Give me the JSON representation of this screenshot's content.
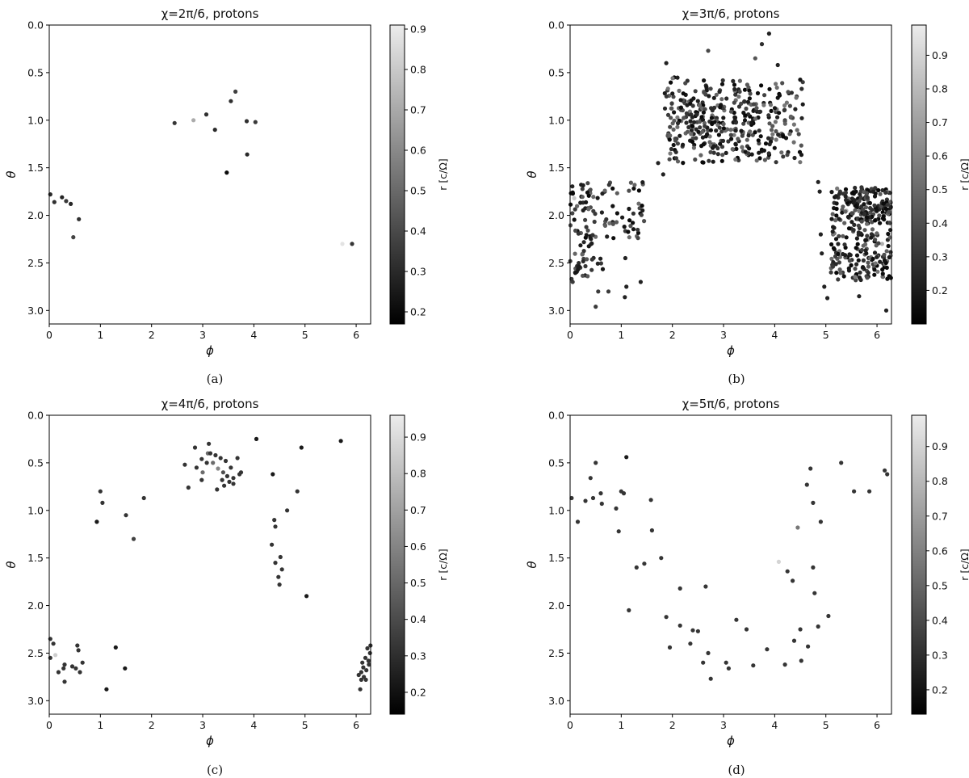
{
  "chart_data": [
    {
      "type": "scatter",
      "panel": "(a)",
      "title": "χ=2π/6, protons",
      "xlabel": "ϕ",
      "ylabel": "θ",
      "colorbar_label": "r [c/Ω]",
      "xlim": [
        0,
        6.283
      ],
      "ylim": [
        3.14159,
        0
      ],
      "xticks": [
        "0",
        "1",
        "2",
        "3",
        "4",
        "5",
        "6"
      ],
      "yticks": [
        "0.0",
        "0.5",
        "1.0",
        "1.5",
        "2.0",
        "2.5",
        "3.0"
      ],
      "clim": [
        0.17,
        0.91
      ],
      "cticks": [
        "0.2",
        "0.3",
        "0.4",
        "0.5",
        "0.6",
        "0.7",
        "0.8",
        "0.9"
      ],
      "points": [
        [
          0.02,
          1.78,
          0.28
        ],
        [
          0.1,
          1.86,
          0.3
        ],
        [
          0.25,
          1.81,
          0.26
        ],
        [
          0.33,
          1.85,
          0.33
        ],
        [
          0.42,
          1.88,
          0.27
        ],
        [
          0.58,
          2.04,
          0.3
        ],
        [
          0.47,
          2.23,
          0.36
        ],
        [
          2.45,
          1.03,
          0.32
        ],
        [
          2.82,
          1.0,
          0.7
        ],
        [
          3.07,
          0.94,
          0.3
        ],
        [
          3.24,
          1.1,
          0.28
        ],
        [
          3.47,
          1.55,
          0.18
        ],
        [
          3.55,
          0.8,
          0.3
        ],
        [
          3.64,
          0.7,
          0.35
        ],
        [
          3.86,
          1.01,
          0.3
        ],
        [
          4.03,
          1.02,
          0.33
        ],
        [
          3.87,
          1.36,
          0.28
        ],
        [
          5.73,
          2.3,
          0.88
        ],
        [
          5.92,
          2.3,
          0.32
        ]
      ]
    },
    {
      "type": "scatter",
      "panel": "(b)",
      "title": "χ=3π/6, protons",
      "xlabel": "ϕ",
      "ylabel": "θ",
      "colorbar_label": "r [c/Ω]",
      "xlim": [
        0,
        6.283
      ],
      "ylim": [
        3.14159,
        0
      ],
      "xticks": [
        "0",
        "1",
        "2",
        "3",
        "4",
        "5",
        "6"
      ],
      "yticks": [
        "0.0",
        "0.5",
        "1.0",
        "1.5",
        "2.0",
        "2.5",
        "3.0"
      ],
      "clim": [
        0.1,
        0.99
      ],
      "cticks": [
        "0.2",
        "0.3",
        "0.4",
        "0.5",
        "0.6",
        "0.7",
        "0.8",
        "0.9"
      ],
      "points": [
        [
          1.72,
          1.45,
          0.2
        ],
        [
          1.82,
          1.57,
          0.2
        ],
        [
          1.88,
          0.4,
          0.2
        ],
        [
          2.7,
          0.27,
          0.35
        ],
        [
          3.62,
          0.35,
          0.4
        ],
        [
          3.75,
          0.2,
          0.25
        ],
        [
          3.89,
          0.09,
          0.2
        ],
        [
          4.06,
          0.42,
          0.2
        ],
        [
          4.55,
          0.6,
          0.3
        ],
        [
          4.43,
          0.75,
          0.3
        ],
        [
          4.3,
          0.85,
          0.35
        ],
        [
          4.2,
          1.0,
          0.3
        ],
        [
          3.62,
          1.12,
          0.75
        ],
        [
          1.08,
          2.45,
          0.2
        ],
        [
          1.1,
          2.75,
          0.2
        ],
        [
          1.07,
          2.86,
          0.2
        ],
        [
          1.38,
          2.7,
          0.2
        ],
        [
          0.5,
          2.96,
          0.3
        ],
        [
          0.55,
          2.8,
          0.3
        ],
        [
          0.75,
          2.8,
          0.3
        ],
        [
          0.05,
          2.7,
          0.3
        ],
        [
          0.1,
          2.6,
          0.35
        ],
        [
          0.2,
          2.55,
          0.3
        ],
        [
          0.08,
          1.82,
          0.85
        ],
        [
          4.85,
          1.65,
          0.2
        ],
        [
          4.88,
          1.75,
          0.2
        ],
        [
          4.9,
          2.2,
          0.2
        ],
        [
          4.92,
          2.4,
          0.2
        ],
        [
          4.97,
          2.75,
          0.2
        ],
        [
          5.03,
          2.87,
          0.2
        ],
        [
          5.1,
          2.6,
          0.3
        ],
        [
          5.65,
          2.85,
          0.2
        ],
        [
          6.18,
          3.0,
          0.2
        ],
        [
          5.4,
          1.95,
          0.8
        ],
        [
          6.1,
          2.3,
          0.75
        ]
      ],
      "clusters": [
        {
          "x": [
            1.85,
            4.55
          ],
          "y": [
            0.55,
            1.45
          ],
          "n": 310,
          "c": [
            0.1,
            0.55
          ],
          "seed": 11
        },
        {
          "x": [
            2.1,
            3.7
          ],
          "y": [
            0.7,
            1.3
          ],
          "n": 90,
          "c": [
            0.1,
            0.5
          ],
          "seed": 12
        },
        {
          "x": [
            0.0,
            1.45
          ],
          "y": [
            1.65,
            2.25
          ],
          "n": 95,
          "c": [
            0.1,
            0.5
          ],
          "seed": 13
        },
        {
          "x": [
            0.0,
            0.7
          ],
          "y": [
            2.2,
            2.75
          ],
          "n": 35,
          "c": [
            0.15,
            0.5
          ],
          "seed": 14
        },
        {
          "x": [
            5.1,
            6.28
          ],
          "y": [
            1.7,
            2.7
          ],
          "n": 260,
          "c": [
            0.1,
            0.55
          ],
          "seed": 15
        },
        {
          "x": [
            5.5,
            6.28
          ],
          "y": [
            1.7,
            2.1
          ],
          "n": 70,
          "c": [
            0.1,
            0.5
          ],
          "seed": 16
        }
      ]
    },
    {
      "type": "scatter",
      "panel": "(c)",
      "title": "χ=4π/6, protons",
      "xlabel": "ϕ",
      "ylabel": "θ",
      "colorbar_label": "r [c/Ω]",
      "xlim": [
        0,
        6.283
      ],
      "ylim": [
        3.14159,
        0
      ],
      "xticks": [
        "0",
        "1",
        "2",
        "3",
        "4",
        "5",
        "6"
      ],
      "yticks": [
        "0.0",
        "0.5",
        "1.0",
        "1.5",
        "2.0",
        "2.5",
        "3.0"
      ],
      "clim": [
        0.14,
        0.96
      ],
      "cticks": [
        "0.2",
        "0.3",
        "0.4",
        "0.5",
        "0.6",
        "0.7",
        "0.8",
        "0.9"
      ],
      "points": [
        [
          0.02,
          2.35,
          0.3
        ],
        [
          0.08,
          2.4,
          0.3
        ],
        [
          0.02,
          2.55,
          0.3
        ],
        [
          0.12,
          2.52,
          0.85
        ],
        [
          0.18,
          2.7,
          0.3
        ],
        [
          0.28,
          2.66,
          0.3
        ],
        [
          0.3,
          2.8,
          0.3
        ],
        [
          0.3,
          2.62,
          0.3
        ],
        [
          0.45,
          2.64,
          0.3
        ],
        [
          0.52,
          2.66,
          0.3
        ],
        [
          0.55,
          2.42,
          0.3
        ],
        [
          0.57,
          2.47,
          0.3
        ],
        [
          0.6,
          2.7,
          0.3
        ],
        [
          0.65,
          2.6,
          0.3
        ],
        [
          0.93,
          1.12,
          0.2
        ],
        [
          1.0,
          0.8,
          0.3
        ],
        [
          1.04,
          0.92,
          0.3
        ],
        [
          1.12,
          2.88,
          0.2
        ],
        [
          1.3,
          2.44,
          0.2
        ],
        [
          1.48,
          2.66,
          0.2
        ],
        [
          1.5,
          1.05,
          0.3
        ],
        [
          1.65,
          1.3,
          0.35
        ],
        [
          1.85,
          0.87,
          0.3
        ],
        [
          2.65,
          0.52,
          0.3
        ],
        [
          2.72,
          0.76,
          0.3
        ],
        [
          2.85,
          0.34,
          0.3
        ],
        [
          2.88,
          0.55,
          0.3
        ],
        [
          2.98,
          0.68,
          0.3
        ],
        [
          3.0,
          0.6,
          0.5
        ],
        [
          3.1,
          0.4,
          0.5
        ],
        [
          3.12,
          0.3,
          0.3
        ],
        [
          3.2,
          0.5,
          0.5
        ],
        [
          3.3,
          0.56,
          0.6
        ],
        [
          3.28,
          0.78,
          0.3
        ],
        [
          3.4,
          0.6,
          0.4
        ],
        [
          3.45,
          0.48,
          0.3
        ],
        [
          3.52,
          0.7,
          0.3
        ],
        [
          3.55,
          0.55,
          0.3
        ],
        [
          3.6,
          0.66,
          0.3
        ],
        [
          3.68,
          0.45,
          0.3
        ],
        [
          3.72,
          0.62,
          0.3
        ],
        [
          3.75,
          0.6,
          0.3
        ],
        [
          3.15,
          0.4,
          0.3
        ],
        [
          3.35,
          0.45,
          0.3
        ],
        [
          3.42,
          0.74,
          0.3
        ],
        [
          3.6,
          0.72,
          0.3
        ],
        [
          3.48,
          0.64,
          0.3
        ],
        [
          3.08,
          0.5,
          0.3
        ],
        [
          2.98,
          0.46,
          0.3
        ],
        [
          3.25,
          0.42,
          0.3
        ],
        [
          3.38,
          0.68,
          0.3
        ],
        [
          4.05,
          0.25,
          0.2
        ],
        [
          4.37,
          0.62,
          0.2
        ],
        [
          4.4,
          1.1,
          0.3
        ],
        [
          4.42,
          1.17,
          0.3
        ],
        [
          4.35,
          1.36,
          0.3
        ],
        [
          4.42,
          1.55,
          0.3
        ],
        [
          4.5,
          1.78,
          0.3
        ],
        [
          4.48,
          1.7,
          0.3
        ],
        [
          4.52,
          1.49,
          0.3
        ],
        [
          4.55,
          1.62,
          0.3
        ],
        [
          4.65,
          1.0,
          0.3
        ],
        [
          4.85,
          0.8,
          0.3
        ],
        [
          4.93,
          0.34,
          0.2
        ],
        [
          5.03,
          1.9,
          0.2
        ],
        [
          5.7,
          0.27,
          0.2
        ],
        [
          6.05,
          2.73,
          0.3
        ],
        [
          6.08,
          2.88,
          0.3
        ],
        [
          6.1,
          2.7,
          0.3
        ],
        [
          6.12,
          2.6,
          0.3
        ],
        [
          6.15,
          2.75,
          0.3
        ],
        [
          6.18,
          2.55,
          0.3
        ],
        [
          6.2,
          2.68,
          0.3
        ],
        [
          6.22,
          2.45,
          0.3
        ],
        [
          6.25,
          2.62,
          0.3
        ],
        [
          6.27,
          2.5,
          0.3
        ],
        [
          6.28,
          2.42,
          0.3
        ],
        [
          6.14,
          2.65,
          0.3
        ],
        [
          6.19,
          2.78,
          0.3
        ],
        [
          6.24,
          2.58,
          0.3
        ],
        [
          6.1,
          2.78,
          0.3
        ]
      ]
    },
    {
      "type": "scatter",
      "panel": "(d)",
      "title": "χ=5π/6, protons",
      "xlabel": "ϕ",
      "ylabel": "θ",
      "colorbar_label": "r [c/Ω]",
      "xlim": [
        0,
        6.283
      ],
      "ylim": [
        3.14159,
        0
      ],
      "xticks": [
        "0",
        "1",
        "2",
        "3",
        "4",
        "5",
        "6"
      ],
      "yticks": [
        "0.0",
        "0.5",
        "1.0",
        "1.5",
        "2.0",
        "2.5",
        "3.0"
      ],
      "clim": [
        0.13,
        0.99
      ],
      "cticks": [
        "0.2",
        "0.3",
        "0.4",
        "0.5",
        "0.6",
        "0.7",
        "0.8",
        "0.9"
      ],
      "points": [
        [
          0.03,
          0.87,
          0.3
        ],
        [
          0.15,
          1.12,
          0.3
        ],
        [
          0.3,
          0.9,
          0.3
        ],
        [
          0.4,
          0.66,
          0.3
        ],
        [
          0.45,
          0.87,
          0.3
        ],
        [
          0.5,
          0.5,
          0.3
        ],
        [
          0.6,
          0.82,
          0.3
        ],
        [
          0.62,
          0.93,
          0.3
        ],
        [
          0.9,
          0.98,
          0.3
        ],
        [
          0.95,
          1.22,
          0.3
        ],
        [
          1.0,
          0.8,
          0.3
        ],
        [
          1.05,
          0.82,
          0.3
        ],
        [
          1.1,
          0.44,
          0.2
        ],
        [
          1.15,
          2.05,
          0.3
        ],
        [
          1.3,
          1.6,
          0.3
        ],
        [
          1.45,
          1.56,
          0.3
        ],
        [
          1.58,
          0.89,
          0.3
        ],
        [
          1.6,
          1.21,
          0.3
        ],
        [
          1.78,
          1.5,
          0.3
        ],
        [
          1.88,
          2.12,
          0.3
        ],
        [
          1.95,
          2.44,
          0.3
        ],
        [
          2.15,
          1.82,
          0.3
        ],
        [
          2.15,
          2.21,
          0.3
        ],
        [
          2.35,
          2.4,
          0.3
        ],
        [
          2.4,
          2.26,
          0.3
        ],
        [
          2.5,
          2.27,
          0.3
        ],
        [
          2.6,
          2.6,
          0.3
        ],
        [
          2.65,
          1.8,
          0.3
        ],
        [
          2.7,
          2.5,
          0.3
        ],
        [
          2.75,
          2.77,
          0.3
        ],
        [
          3.05,
          2.6,
          0.3
        ],
        [
          3.1,
          2.66,
          0.3
        ],
        [
          3.25,
          2.15,
          0.3
        ],
        [
          3.45,
          2.25,
          0.3
        ],
        [
          3.58,
          2.63,
          0.3
        ],
        [
          3.85,
          2.46,
          0.3
        ],
        [
          4.08,
          1.54,
          0.9
        ],
        [
          4.2,
          2.62,
          0.3
        ],
        [
          4.25,
          1.64,
          0.3
        ],
        [
          4.35,
          1.74,
          0.3
        ],
        [
          4.38,
          2.37,
          0.3
        ],
        [
          4.45,
          1.18,
          0.55
        ],
        [
          4.5,
          2.25,
          0.3
        ],
        [
          4.52,
          2.58,
          0.3
        ],
        [
          4.63,
          0.73,
          0.3
        ],
        [
          4.65,
          2.43,
          0.3
        ],
        [
          4.7,
          0.56,
          0.3
        ],
        [
          4.75,
          1.6,
          0.3
        ],
        [
          4.75,
          0.92,
          0.3
        ],
        [
          4.78,
          1.87,
          0.3
        ],
        [
          4.85,
          2.22,
          0.3
        ],
        [
          4.9,
          1.12,
          0.3
        ],
        [
          5.05,
          2.11,
          0.3
        ],
        [
          5.3,
          0.5,
          0.3
        ],
        [
          5.55,
          0.8,
          0.3
        ],
        [
          5.85,
          0.8,
          0.3
        ],
        [
          6.15,
          0.58,
          0.3
        ],
        [
          6.2,
          0.62,
          0.3
        ]
      ]
    }
  ],
  "captions": [
    "(a)",
    "(b)",
    "(c)",
    "(d)"
  ]
}
